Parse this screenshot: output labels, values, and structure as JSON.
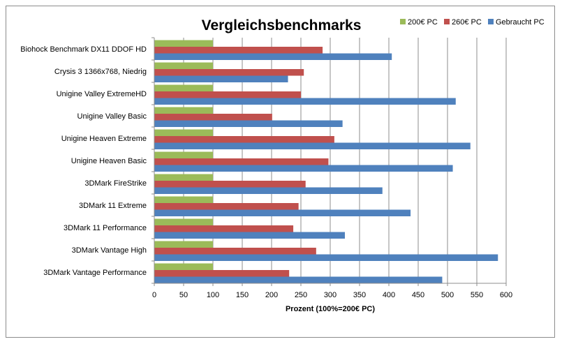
{
  "chart_data": {
    "type": "bar",
    "orientation": "horizontal",
    "title": "Vergleichsbenchmarks",
    "xlabel": "Prozent (100%=200€ PC)",
    "ylabel": "",
    "xlim": [
      0,
      600
    ],
    "xticks": [
      0,
      50,
      100,
      150,
      200,
      250,
      300,
      350,
      400,
      450,
      500,
      550,
      600
    ],
    "gridlines": true,
    "legend_position": "top-right",
    "categories": [
      "Biohock Benchmark DX11 DDOF HD",
      "Crysis 3 1366x768, Niedrig",
      "Unigine Valley ExtremeHD",
      "Unigine Valley Basic",
      "Unigine Heaven Extreme",
      "Unigine Heaven Basic",
      "3DMark FireStrike",
      "3DMark 11 Extreme",
      "3DMark 11 Performance",
      "3DMark Vantage High",
      "3DMark Vantage Performance"
    ],
    "series": [
      {
        "name": "200€ PC",
        "color": "#9BBB59",
        "values": [
          100,
          100,
          100,
          100,
          100,
          100,
          100,
          100,
          100,
          100,
          100
        ]
      },
      {
        "name": "260€ PC",
        "color": "#C0504D",
        "values": [
          287,
          255,
          250,
          201,
          307,
          297,
          258,
          246,
          237,
          276,
          230
        ]
      },
      {
        "name": "Gebraucht PC",
        "color": "#4F81BD",
        "values": [
          405,
          228,
          514,
          321,
          539,
          509,
          389,
          437,
          325,
          586,
          491
        ]
      }
    ]
  }
}
